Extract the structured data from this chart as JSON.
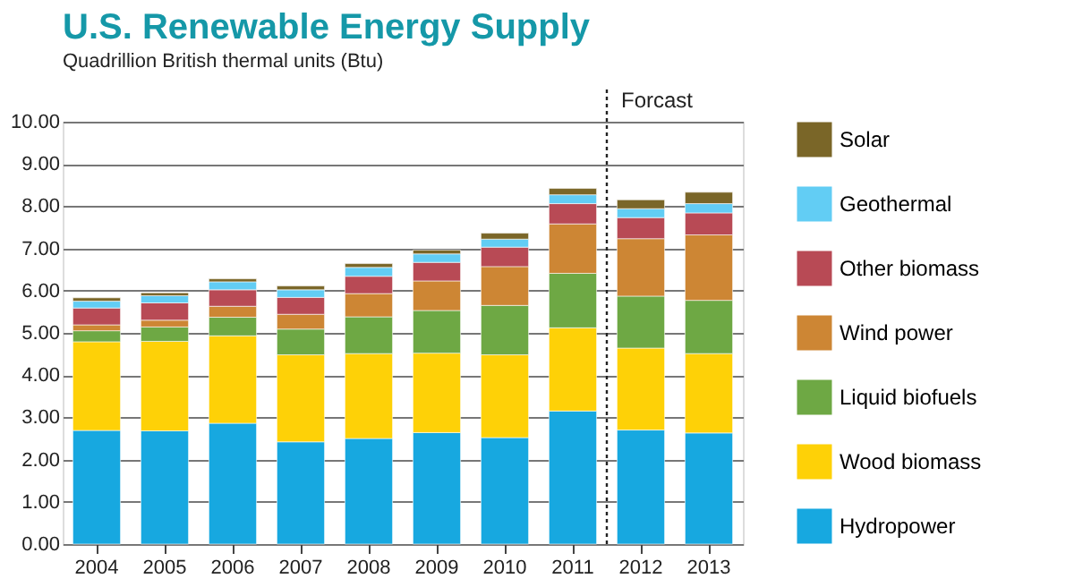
{
  "chart_data": {
    "type": "bar",
    "title": "U.S. Renewable Energy Supply",
    "subtitle": "Quadrillion British thermal units (Btu)",
    "stacked": true,
    "categories": [
      "2004",
      "2005",
      "2006",
      "2007",
      "2008",
      "2009",
      "2010",
      "2011",
      "2012",
      "2013"
    ],
    "series": [
      {
        "name": "Hydropower",
        "color": "#17a8e0",
        "values": [
          2.69,
          2.68,
          2.86,
          2.42,
          2.5,
          2.64,
          2.52,
          3.15,
          2.7,
          2.63
        ]
      },
      {
        "name": "Wood biomass",
        "color": "#fed107",
        "values": [
          2.1,
          2.12,
          2.07,
          2.06,
          2.01,
          1.88,
          1.96,
          1.97,
          1.94,
          1.88
        ]
      },
      {
        "name": "Liquid biofuels",
        "color": "#6ea844",
        "values": [
          0.26,
          0.34,
          0.44,
          0.61,
          0.87,
          1.01,
          1.17,
          1.29,
          1.23,
          1.26
        ]
      },
      {
        "name": "Wind power",
        "color": "#cd8634",
        "values": [
          0.14,
          0.16,
          0.26,
          0.35,
          0.55,
          0.7,
          0.92,
          1.17,
          1.36,
          1.55
        ]
      },
      {
        "name": "Other biomass",
        "color": "#b84a55",
        "values": [
          0.4,
          0.41,
          0.39,
          0.4,
          0.41,
          0.44,
          0.46,
          0.48,
          0.5,
          0.52
        ]
      },
      {
        "name": "Geothermal",
        "color": "#62cdf4",
        "values": [
          0.16,
          0.17,
          0.19,
          0.18,
          0.21,
          0.2,
          0.19,
          0.21,
          0.21,
          0.22
        ]
      },
      {
        "name": "Solar",
        "color": "#7a6628",
        "values": [
          0.08,
          0.07,
          0.07,
          0.09,
          0.09,
          0.09,
          0.14,
          0.15,
          0.21,
          0.27
        ]
      }
    ],
    "ylim": [
      0,
      10
    ],
    "yticks": [
      {
        "value": 0,
        "label": "0.00"
      },
      {
        "value": 1,
        "label": "1.00"
      },
      {
        "value": 2,
        "label": "2.00"
      },
      {
        "value": 3,
        "label": "3.00"
      },
      {
        "value": 4,
        "label": "4.00"
      },
      {
        "value": 5,
        "label": "5.00"
      },
      {
        "value": 6,
        "label": "6.00"
      },
      {
        "value": 7,
        "label": "7.00"
      },
      {
        "value": 8,
        "label": "8.00"
      },
      {
        "value": 9,
        "label": "9.00"
      },
      {
        "value": 10,
        "label": "10.00"
      }
    ],
    "grid": "y",
    "legend": "right",
    "ref_lines": [
      {
        "axis": "x",
        "value": "2012",
        "label": "Forcast",
        "color": "#222222",
        "line_style": "dotted"
      }
    ]
  }
}
